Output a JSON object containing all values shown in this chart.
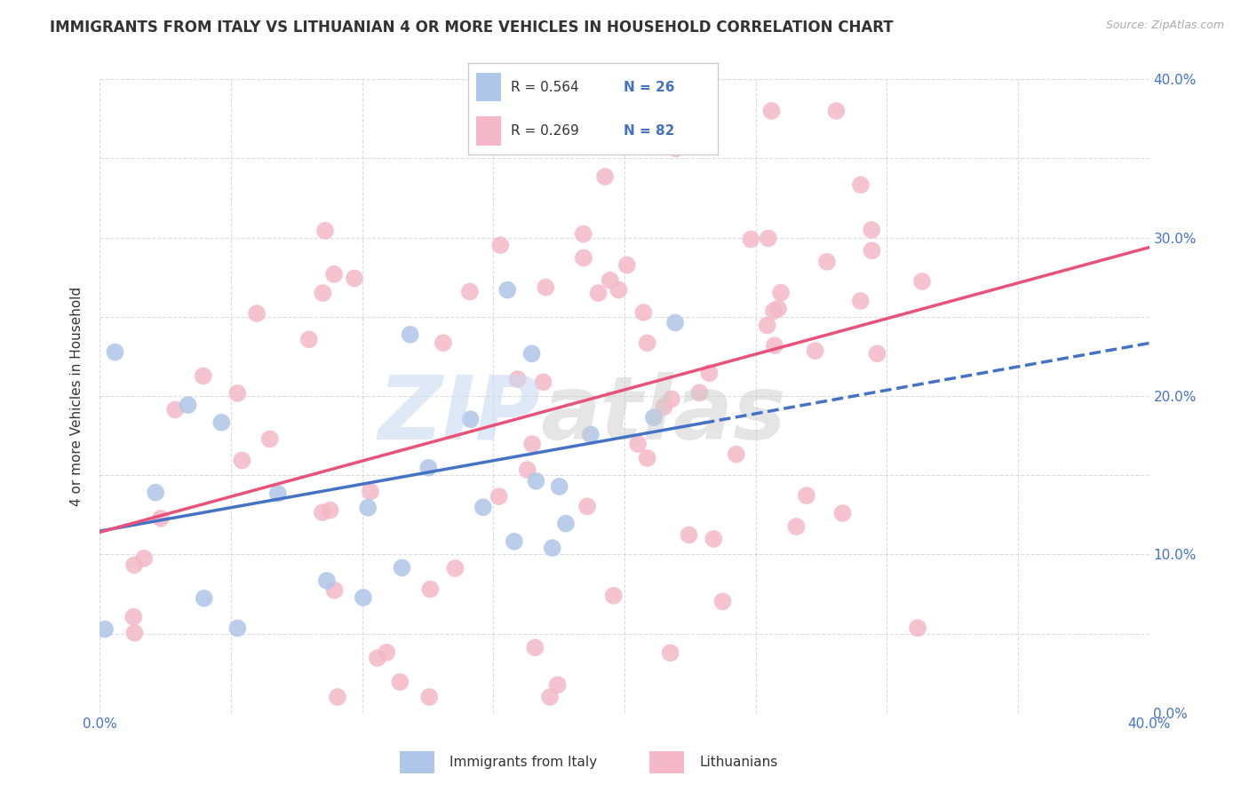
{
  "title": "IMMIGRANTS FROM ITALY VS LITHUANIAN 4 OR MORE VEHICLES IN HOUSEHOLD CORRELATION CHART",
  "source": "Source: ZipAtlas.com",
  "ylabel": "4 or more Vehicles in Household",
  "xlim": [
    0.0,
    0.4
  ],
  "ylim": [
    0.0,
    0.4
  ],
  "italy_color": "#aec6e8",
  "italy_color_dark": "#4472c4",
  "lithuanian_color": "#f4b8c8",
  "lithuanian_color_dark": "#e8527a",
  "italy_R": 0.564,
  "italy_N": 26,
  "lithuanian_R": 0.269,
  "lithuanian_N": 82,
  "legend_label_italy": "Immigrants from Italy",
  "legend_label_lith": "Lithuanians",
  "background_color": "#ffffff",
  "grid_color": "#cccccc"
}
